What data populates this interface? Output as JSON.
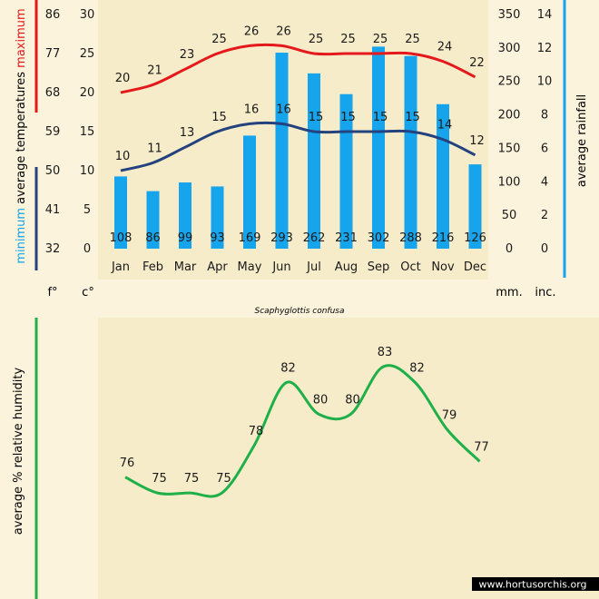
{
  "colors": {
    "background": "#fbf3dc",
    "panel": "#f7ecc9",
    "max_line": "#e3191c",
    "min_line": "#24427e",
    "rain": "#16a4ec",
    "humidity": "#1fb04a",
    "text": "#1a1a1a",
    "credit_bg": "#000000",
    "credit_text": "#ffffff"
  },
  "chart_data": [
    {
      "type": "bar",
      "title": "",
      "caption": "Scaphyglottis confusa",
      "categories": [
        "Jan",
        "Feb",
        "Mar",
        "Apr",
        "May",
        "Jun",
        "Jul",
        "Aug",
        "Sep",
        "Oct",
        "Nov",
        "Dec"
      ],
      "series": [
        {
          "name": "maximum",
          "type": "line",
          "axis": "left",
          "values": [
            20,
            21,
            23,
            25,
            26,
            26,
            25,
            25,
            25,
            25,
            24,
            22
          ]
        },
        {
          "name": "minimum",
          "type": "line",
          "axis": "left",
          "values": [
            10,
            11,
            13,
            15,
            16,
            16,
            15,
            15,
            15,
            15,
            14,
            12
          ]
        },
        {
          "name": "average rainfall",
          "type": "bar",
          "axis": "right",
          "values": [
            108,
            86,
            99,
            93,
            169,
            293,
            262,
            231,
            302,
            288,
            216,
            126
          ]
        }
      ],
      "left_axis": {
        "label_parts": [
          "maximum",
          "average temperatures",
          "minimum"
        ],
        "unit_c": "c°",
        "unit_f": "f°",
        "ylim_c": [
          0,
          30
        ],
        "ticks_c": [
          "0",
          "5",
          "10",
          "15",
          "20",
          "25",
          "30"
        ],
        "ticks_f": [
          "32",
          "41",
          "50",
          "59",
          "68",
          "77",
          "86"
        ]
      },
      "right_axis": {
        "label": "average rainfall",
        "unit_mm": "mm.",
        "unit_in": "inc.",
        "ylim_mm": [
          0,
          350
        ],
        "ticks_mm": [
          "0",
          "50",
          "100",
          "150",
          "200",
          "250",
          "300",
          "350"
        ],
        "ticks_in": [
          "0",
          "2",
          "4",
          "6",
          "8",
          "10",
          "12",
          "14"
        ]
      },
      "grid": false
    },
    {
      "type": "line",
      "title": "",
      "ylabel": "average %  relative humidity",
      "categories": [
        "Jan",
        "Feb",
        "Mar",
        "Apr",
        "May",
        "Jun",
        "Jul",
        "Aug",
        "Sep",
        "Oct",
        "Nov",
        "Dec"
      ],
      "values": [
        76,
        75,
        75,
        75,
        78,
        82,
        80,
        80,
        83,
        82,
        79,
        77
      ],
      "ylim": [
        70,
        86
      ],
      "axes_visible": false,
      "grid": false
    }
  ],
  "credit": "www.hortusorchis.org"
}
